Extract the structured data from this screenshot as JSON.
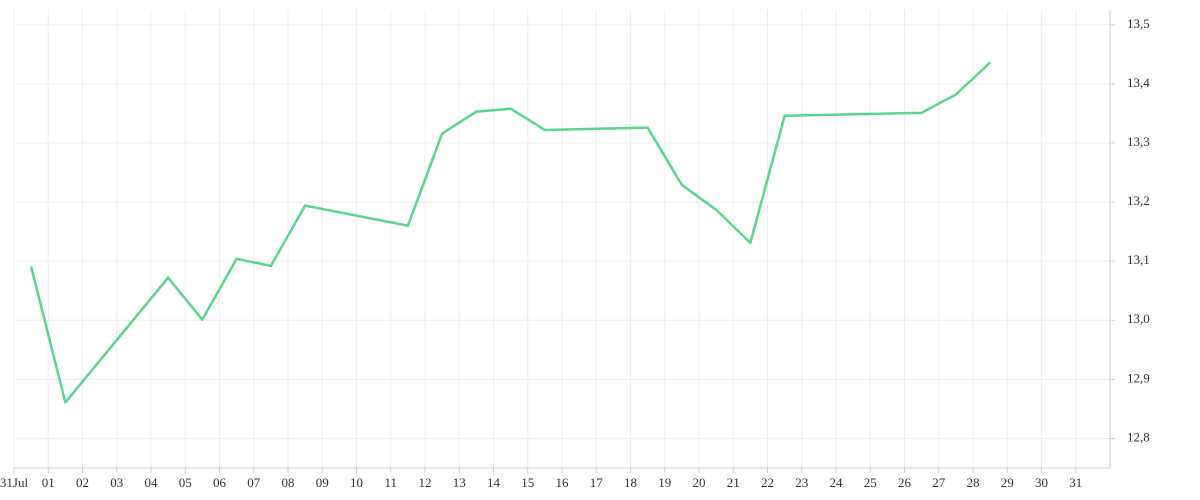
{
  "chart_data": {
    "type": "line",
    "x": [
      0.5,
      1.5,
      4.5,
      5.5,
      6.5,
      7.5,
      8.5,
      11.5,
      12.5,
      13.5,
      14.5,
      15.5,
      18.5,
      19.5,
      20.5,
      21.5,
      22.5,
      26.5,
      27.5,
      28.5
    ],
    "series": [
      {
        "color": "#5ad68a",
        "values": [
          13.091,
          12.861,
          13.072,
          13.001,
          13.104,
          13.092,
          13.194,
          13.16,
          13.316,
          13.353,
          13.358,
          13.322,
          13.326,
          13.229,
          13.187,
          13.131,
          13.346,
          13.351,
          13.382,
          13.436
        ]
      }
    ],
    "xlim": [
      0,
      32
    ],
    "xticks": [
      {
        "value": 0,
        "label": "31Jul"
      },
      {
        "value": 1,
        "label": "01"
      },
      {
        "value": 2,
        "label": "02"
      },
      {
        "value": 3,
        "label": "03"
      },
      {
        "value": 4,
        "label": "04"
      },
      {
        "value": 5,
        "label": "05"
      },
      {
        "value": 6,
        "label": "06"
      },
      {
        "value": 7,
        "label": "07"
      },
      {
        "value": 8,
        "label": "08"
      },
      {
        "value": 9,
        "label": "09"
      },
      10,
      11,
      12,
      13,
      14,
      15,
      16,
      17,
      18,
      19,
      20,
      21,
      22,
      23,
      24,
      25,
      26,
      27,
      28,
      29,
      30,
      31
    ],
    "ylim": [
      12.75,
      13.525
    ],
    "yticks": [
      {
        "value": 12.8,
        "label": "12,8"
      },
      {
        "value": 12.9,
        "label": "12,9"
      },
      {
        "value": 13.0,
        "label": "13,0"
      },
      {
        "value": 13.1,
        "label": "13,1"
      },
      {
        "value": 13.2,
        "label": "13,2"
      },
      {
        "value": 13.3,
        "label": "13,3"
      },
      {
        "value": 13.4,
        "label": "13,4"
      },
      {
        "value": 13.5,
        "label": "13,5"
      }
    ],
    "grid": true
  }
}
